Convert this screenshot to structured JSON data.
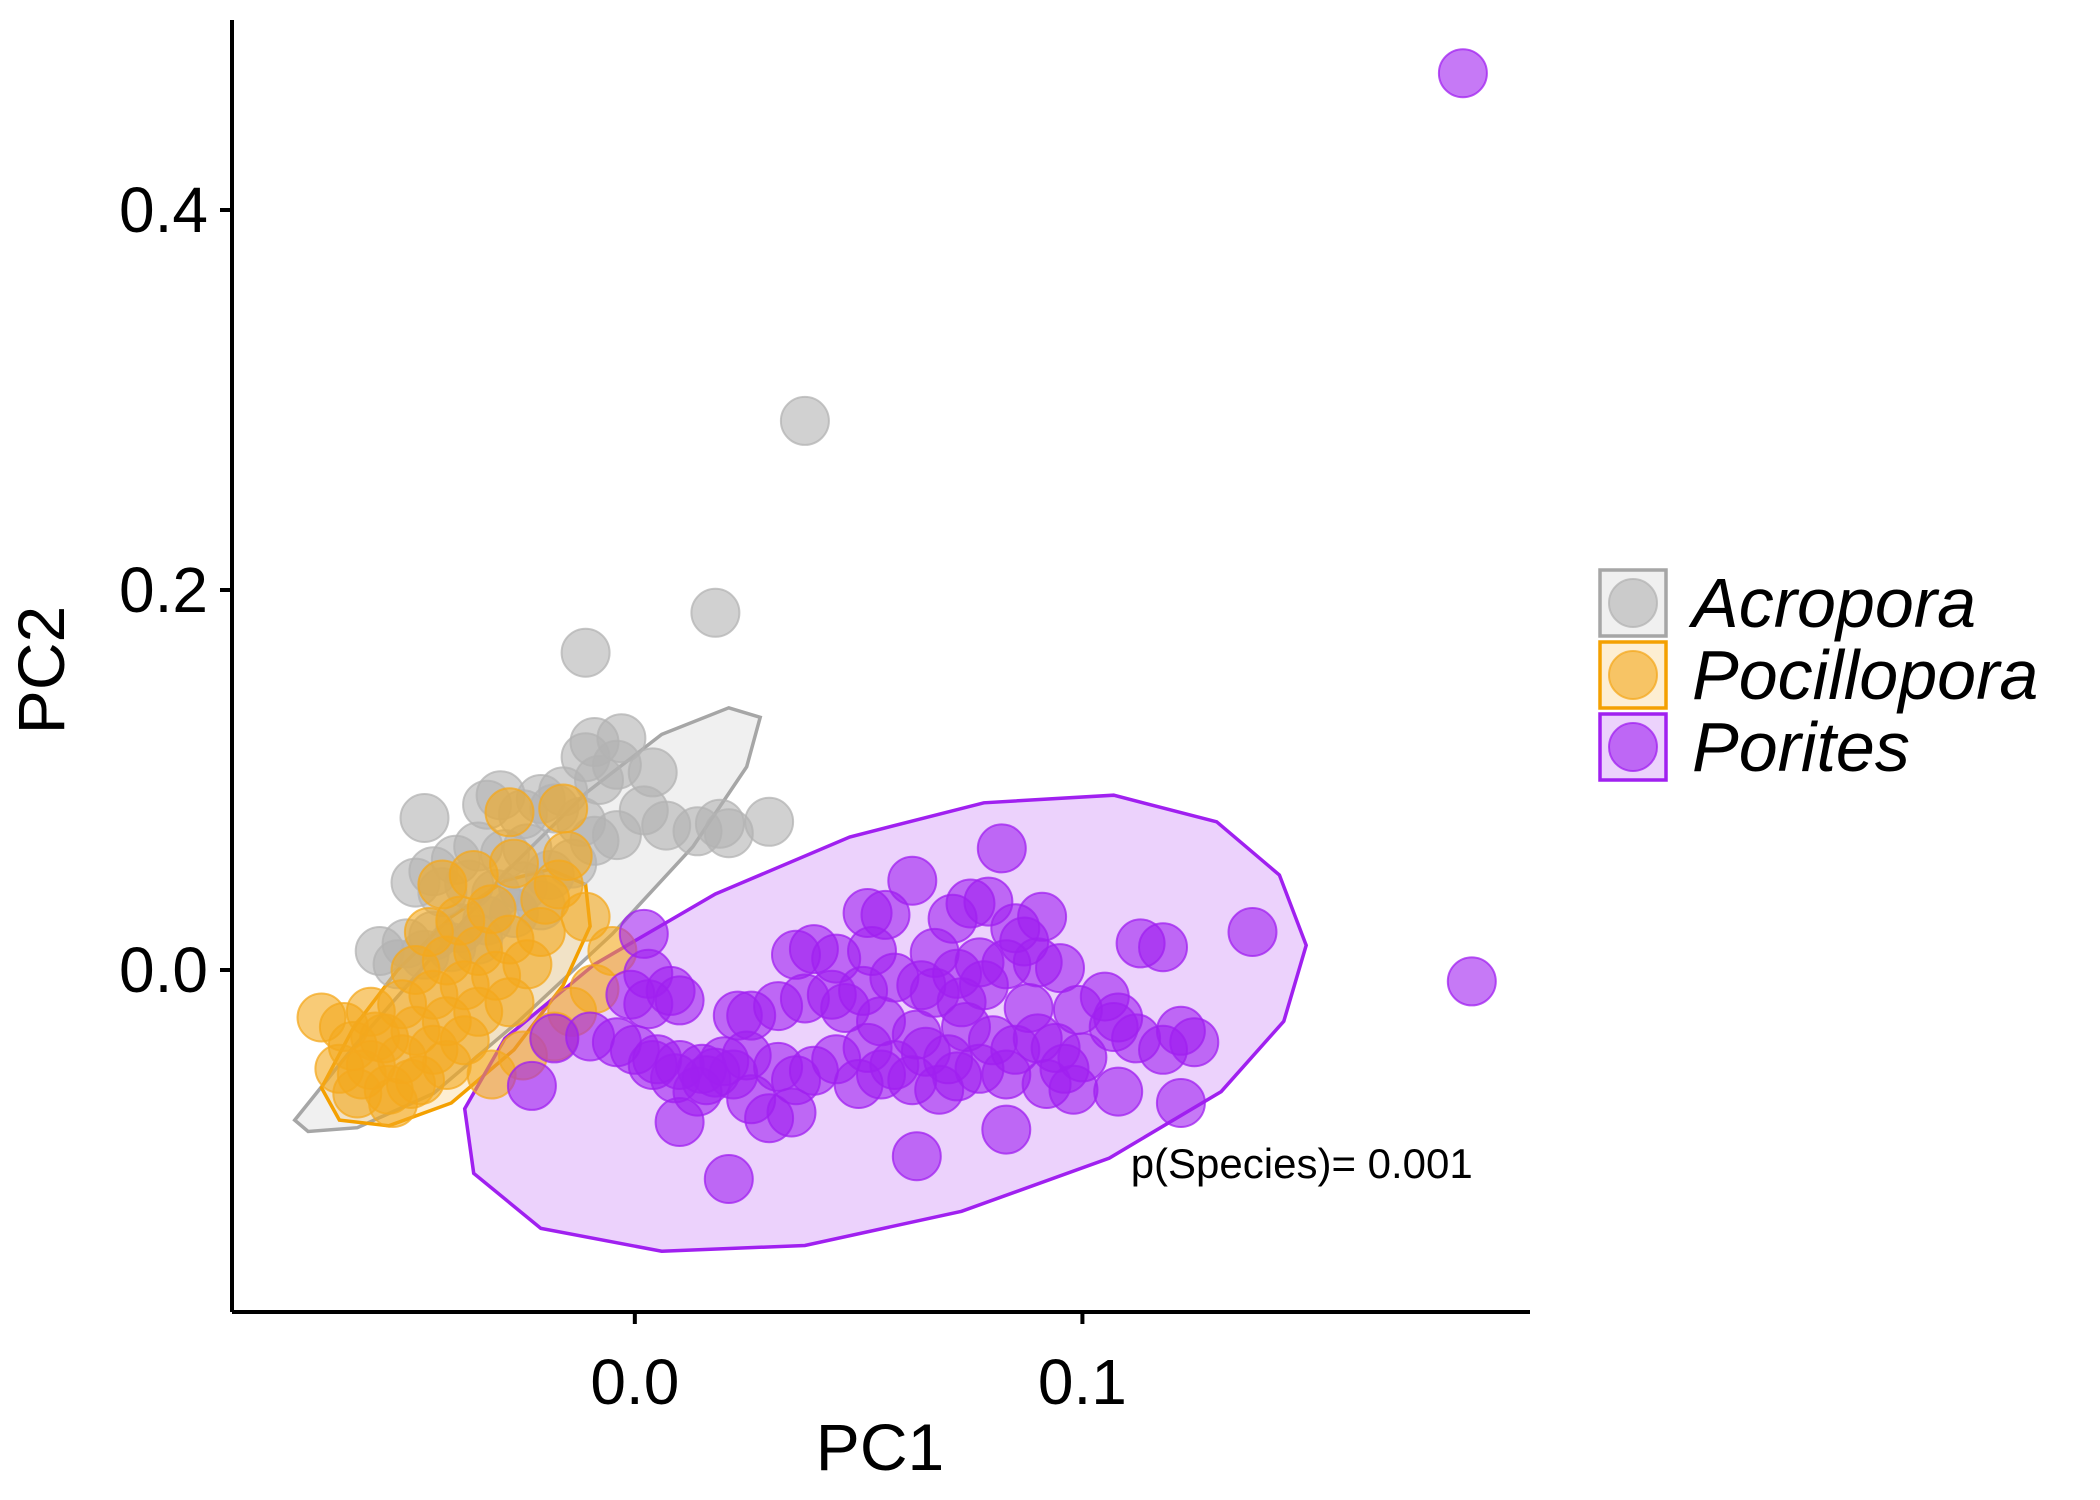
{
  "chart_data": {
    "type": "scatter",
    "xlabel": "PC1",
    "ylabel": "PC2",
    "xlim": [
      -0.09,
      0.2
    ],
    "ylim": [
      -0.18,
      0.5
    ],
    "x_ticks": [
      {
        "value": 0.0,
        "label": "0.0"
      },
      {
        "value": 0.1,
        "label": "0.1"
      }
    ],
    "y_ticks": [
      {
        "value": 0.0,
        "label": "0.0"
      },
      {
        "value": 0.2,
        "label": "0.2"
      },
      {
        "value": 0.4,
        "label": "0.4"
      }
    ],
    "grid": false,
    "legend_position": "right",
    "annotation": {
      "text": "p(Species)= 0.001",
      "x": 0.149,
      "y": -0.102
    },
    "series": [
      {
        "name": "Acropora",
        "color": "#b3b3b3",
        "ellipse_color": "#a6a6a6",
        "ellipse": [
          [
            -0.076,
            -0.079
          ],
          [
            -0.063,
            -0.041
          ],
          [
            -0.046,
            0.005
          ],
          [
            -0.029,
            0.051
          ],
          [
            -0.011,
            0.093
          ],
          [
            0.006,
            0.124
          ],
          [
            0.021,
            0.138
          ],
          [
            0.028,
            0.133
          ],
          [
            0.025,
            0.107
          ],
          [
            0.013,
            0.065
          ],
          [
            -0.005,
            0.019
          ],
          [
            -0.026,
            -0.027
          ],
          [
            -0.045,
            -0.065
          ],
          [
            -0.062,
            -0.083
          ],
          [
            -0.073,
            -0.085
          ],
          [
            -0.076,
            -0.079
          ]
        ],
        "points": [
          [
            0.038,
            0.289
          ],
          [
            0.018,
            0.188
          ],
          [
            -0.011,
            0.167
          ],
          [
            -0.047,
            0.08
          ],
          [
            -0.009,
            0.12
          ],
          [
            -0.003,
            0.122
          ],
          [
            -0.011,
            0.112
          ],
          [
            -0.004,
            0.108
          ],
          [
            0.004,
            0.104
          ],
          [
            -0.008,
            0.1
          ],
          [
            -0.016,
            0.094
          ],
          [
            -0.021,
            0.09
          ],
          [
            -0.03,
            0.092
          ],
          [
            -0.033,
            0.087
          ],
          [
            -0.025,
            0.082
          ],
          [
            -0.018,
            0.085
          ],
          [
            -0.012,
            0.078
          ],
          [
            -0.004,
            0.071
          ],
          [
            -0.009,
            0.068
          ],
          [
            0.002,
            0.084
          ],
          [
            0.007,
            0.076
          ],
          [
            0.014,
            0.073
          ],
          [
            0.019,
            0.077
          ],
          [
            0.021,
            0.072
          ],
          [
            0.03,
            0.078
          ],
          [
            -0.024,
            0.064
          ],
          [
            -0.029,
            0.061
          ],
          [
            -0.035,
            0.065
          ],
          [
            -0.04,
            0.058
          ],
          [
            -0.045,
            0.052
          ],
          [
            -0.049,
            0.046
          ],
          [
            -0.043,
            0.041
          ],
          [
            -0.037,
            0.045
          ],
          [
            -0.031,
            0.04
          ],
          [
            -0.025,
            0.044
          ],
          [
            -0.019,
            0.05
          ],
          [
            -0.014,
            0.056
          ],
          [
            -0.021,
            0.034
          ],
          [
            -0.027,
            0.03
          ],
          [
            -0.033,
            0.026
          ],
          [
            -0.039,
            0.022
          ],
          [
            -0.045,
            0.018
          ],
          [
            -0.051,
            0.014
          ],
          [
            -0.057,
            0.01
          ],
          [
            -0.053,
            0.003
          ],
          [
            -0.047,
            0.008
          ],
          [
            -0.041,
            0.012
          ],
          [
            -0.035,
            0.016
          ]
        ]
      },
      {
        "name": "Pocillopora",
        "color": "#f4a81d",
        "ellipse_color": "#f4a000",
        "ellipse": [
          [
            -0.07,
            -0.062
          ],
          [
            -0.063,
            -0.031
          ],
          [
            -0.053,
            0.0
          ],
          [
            -0.041,
            0.028
          ],
          [
            -0.029,
            0.047
          ],
          [
            -0.019,
            0.053
          ],
          [
            -0.011,
            0.045
          ],
          [
            -0.01,
            0.023
          ],
          [
            -0.016,
            -0.008
          ],
          [
            -0.027,
            -0.042
          ],
          [
            -0.041,
            -0.07
          ],
          [
            -0.055,
            -0.082
          ],
          [
            -0.066,
            -0.079
          ],
          [
            -0.07,
            -0.062
          ]
        ],
        "points": [
          [
            -0.028,
            0.083
          ],
          [
            -0.016,
            0.085
          ],
          [
            -0.015,
            0.06
          ],
          [
            -0.027,
            0.056
          ],
          [
            -0.036,
            0.05
          ],
          [
            -0.043,
            0.045
          ],
          [
            -0.02,
            0.037
          ],
          [
            -0.032,
            0.032
          ],
          [
            -0.039,
            0.026
          ],
          [
            -0.046,
            0.02
          ],
          [
            -0.021,
            0.02
          ],
          [
            -0.028,
            0.016
          ],
          [
            -0.035,
            0.01
          ],
          [
            -0.042,
            0.005
          ],
          [
            -0.049,
            0.0
          ],
          [
            -0.024,
            0.003
          ],
          [
            -0.031,
            -0.003
          ],
          [
            -0.038,
            -0.008
          ],
          [
            -0.045,
            -0.013
          ],
          [
            -0.052,
            -0.018
          ],
          [
            -0.059,
            -0.022
          ],
          [
            -0.028,
            -0.017
          ],
          [
            -0.035,
            -0.022
          ],
          [
            -0.042,
            -0.027
          ],
          [
            -0.049,
            -0.032
          ],
          [
            -0.056,
            -0.036
          ],
          [
            -0.063,
            -0.04
          ],
          [
            -0.038,
            -0.037
          ],
          [
            -0.045,
            -0.042
          ],
          [
            -0.052,
            -0.047
          ],
          [
            -0.059,
            -0.05
          ],
          [
            -0.066,
            -0.052
          ],
          [
            -0.048,
            -0.058
          ],
          [
            -0.055,
            -0.063
          ],
          [
            -0.061,
            -0.055
          ],
          [
            -0.07,
            -0.025
          ],
          [
            -0.065,
            -0.03
          ],
          [
            -0.058,
            -0.035
          ],
          [
            -0.05,
            -0.06
          ],
          [
            -0.042,
            -0.05
          ],
          [
            -0.062,
            -0.065
          ],
          [
            -0.054,
            -0.07
          ],
          [
            -0.032,
            -0.055
          ],
          [
            -0.025,
            -0.045
          ],
          [
            -0.018,
            -0.035
          ],
          [
            -0.014,
            -0.022
          ],
          [
            -0.009,
            -0.01
          ],
          [
            -0.005,
            0.01
          ],
          [
            -0.011,
            0.028
          ],
          [
            -0.017,
            0.045
          ]
        ]
      },
      {
        "name": "Porites",
        "color": "#a020f0",
        "ellipse_color": "#a020f0",
        "ellipse": [
          [
            -0.038,
            -0.073
          ],
          [
            -0.029,
            -0.036
          ],
          [
            -0.009,
            0.003
          ],
          [
            0.018,
            0.04
          ],
          [
            0.048,
            0.07
          ],
          [
            0.078,
            0.088
          ],
          [
            0.107,
            0.092
          ],
          [
            0.13,
            0.078
          ],
          [
            0.144,
            0.05
          ],
          [
            0.15,
            0.013
          ],
          [
            0.145,
            -0.027
          ],
          [
            0.131,
            -0.064
          ],
          [
            0.106,
            -0.099
          ],
          [
            0.073,
            -0.127
          ],
          [
            0.038,
            -0.145
          ],
          [
            0.006,
            -0.148
          ],
          [
            -0.021,
            -0.136
          ],
          [
            -0.036,
            -0.107
          ],
          [
            -0.038,
            -0.073
          ]
        ],
        "points": [
          [
            0.185,
            0.472
          ],
          [
            0.187,
            -0.006
          ],
          [
            0.082,
            0.064
          ],
          [
            0.062,
            0.047
          ],
          [
            0.138,
            0.02
          ],
          [
            0.113,
            0.014
          ],
          [
            0.118,
            0.012
          ],
          [
            0.052,
            0.03
          ],
          [
            0.056,
            0.029
          ],
          [
            0.075,
            0.035
          ],
          [
            0.079,
            0.036
          ],
          [
            0.091,
            0.028
          ],
          [
            0.071,
            0.027
          ],
          [
            0.085,
            0.022
          ],
          [
            0.04,
            0.011
          ],
          [
            0.036,
            0.008
          ],
          [
            0.045,
            0.006
          ],
          [
            0.053,
            0.01
          ],
          [
            0.067,
            0.009
          ],
          [
            0.077,
            0.004
          ],
          [
            0.083,
            0.003
          ],
          [
            0.072,
            -0.002
          ],
          [
            0.064,
            -0.008
          ],
          [
            0.058,
            -0.004
          ],
          [
            0.051,
            -0.011
          ],
          [
            0.044,
            -0.013
          ],
          [
            0.038,
            -0.015
          ],
          [
            0.032,
            -0.019
          ],
          [
            0.026,
            -0.024
          ],
          [
            0.008,
            -0.011
          ],
          [
            0.01,
            -0.016
          ],
          [
            0.003,
            -0.018
          ],
          [
            -0.001,
            -0.013
          ],
          [
            0.023,
            -0.024
          ],
          [
            0.047,
            -0.02
          ],
          [
            0.055,
            -0.027
          ],
          [
            0.063,
            -0.034
          ],
          [
            0.074,
            -0.03
          ],
          [
            0.088,
            -0.02
          ],
          [
            0.099,
            -0.021
          ],
          [
            0.105,
            -0.014
          ],
          [
            0.108,
            -0.025
          ],
          [
            0.107,
            -0.03
          ],
          [
            0.112,
            -0.036
          ],
          [
            0.122,
            -0.032
          ],
          [
            0.118,
            -0.042
          ],
          [
            0.125,
            -0.038
          ],
          [
            0.09,
            -0.036
          ],
          [
            0.094,
            -0.041
          ],
          [
            0.096,
            -0.052
          ],
          [
            0.1,
            -0.046
          ],
          [
            0.085,
            -0.042
          ],
          [
            0.08,
            -0.037
          ],
          [
            0.07,
            -0.047
          ],
          [
            0.065,
            -0.043
          ],
          [
            0.058,
            -0.05
          ],
          [
            0.052,
            -0.041
          ],
          [
            0.045,
            -0.047
          ],
          [
            0.04,
            -0.053
          ],
          [
            0.036,
            -0.058
          ],
          [
            0.032,
            -0.051
          ],
          [
            0.025,
            -0.045
          ],
          [
            0.02,
            -0.048
          ],
          [
            0.015,
            -0.052
          ],
          [
            0.01,
            -0.05
          ],
          [
            0.005,
            -0.047
          ],
          [
            0.0,
            -0.042
          ],
          [
            -0.004,
            -0.038
          ],
          [
            -0.01,
            -0.035
          ],
          [
            -0.018,
            -0.036
          ],
          [
            -0.023,
            -0.061
          ],
          [
            0.004,
            -0.05
          ],
          [
            0.009,
            -0.057
          ],
          [
            0.014,
            -0.064
          ],
          [
            0.016,
            -0.058
          ],
          [
            0.018,
            -0.054
          ],
          [
            0.022,
            -0.055
          ],
          [
            0.026,
            -0.068
          ],
          [
            0.03,
            -0.078
          ],
          [
            0.035,
            -0.075
          ],
          [
            0.05,
            -0.06
          ],
          [
            0.055,
            -0.055
          ],
          [
            0.062,
            -0.058
          ],
          [
            0.068,
            -0.063
          ],
          [
            0.072,
            -0.056
          ],
          [
            0.077,
            -0.052
          ],
          [
            0.083,
            -0.055
          ],
          [
            0.092,
            -0.06
          ],
          [
            0.098,
            -0.063
          ],
          [
            0.108,
            -0.064
          ],
          [
            0.122,
            -0.07
          ],
          [
            0.083,
            -0.084
          ],
          [
            0.063,
            -0.098
          ],
          [
            0.021,
            -0.11
          ],
          [
            0.01,
            -0.08
          ],
          [
            0.002,
            0.019
          ],
          [
            0.003,
            -0.002
          ],
          [
            0.087,
            0.015
          ],
          [
            0.09,
            0.004
          ],
          [
            0.095,
            0.001
          ],
          [
            0.067,
            -0.012
          ],
          [
            0.073,
            -0.017
          ],
          [
            0.078,
            -0.008
          ]
        ]
      }
    ]
  }
}
